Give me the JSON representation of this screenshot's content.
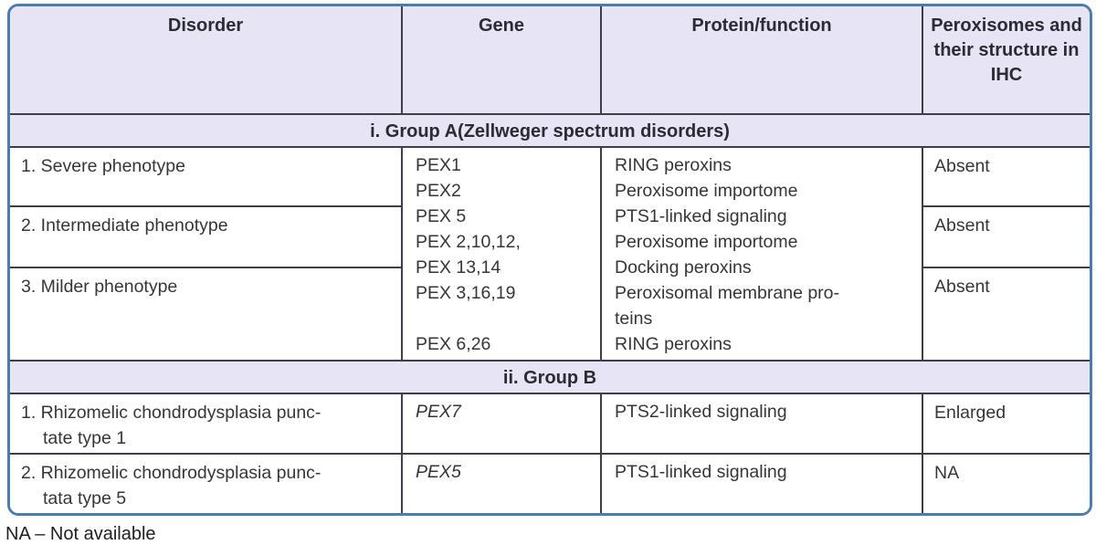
{
  "colors": {
    "outer_border": "#4d7dad",
    "header_bg": "#e6e4f5",
    "grid_line": "#3e3e48",
    "text_dark": "#2b2b33",
    "text_body": "#363636"
  },
  "table": {
    "columns": [
      "Disorder",
      "Gene",
      "Protein/function",
      "Peroxisomes and their structure in IHC"
    ],
    "group_a": {
      "header": "i. Group A(Zellweger spectrum disorders)",
      "rows": [
        {
          "disorder": "1. Severe phenotype",
          "ihc": "Absent"
        },
        {
          "disorder": "2. Intermediate phenotype",
          "ihc": "Absent"
        },
        {
          "disorder": "3. Milder phenotype",
          "ihc": "Absent"
        }
      ],
      "gene_lines": [
        "PEX1",
        "PEX2",
        "PEX 5",
        "PEX 2,10,12,",
        "PEX 13,14",
        "PEX 3,16,19",
        "",
        "PEX 6,26"
      ],
      "protein_lines": [
        "RING peroxins",
        "Peroxisome importome",
        "PTS1-linked signaling",
        "Peroxisome importome",
        "Docking peroxins",
        "Peroxisomal membrane pro-",
        "teins",
        "RING peroxins"
      ]
    },
    "group_b": {
      "header": "ii. Group B",
      "rows": [
        {
          "disorder_lines": [
            "1. Rhizomelic chondrodysplasia punc-",
            "tate type 1"
          ],
          "gene": "PEX7",
          "protein": "PTS2-linked signaling",
          "ihc": "Enlarged"
        },
        {
          "disorder_lines": [
            "2. Rhizomelic chondrodysplasia punc-",
            "tata type 5"
          ],
          "gene": "PEX5",
          "protein": "PTS1-linked signaling",
          "ihc": "NA"
        }
      ]
    },
    "footnote": "NA – Not available"
  }
}
